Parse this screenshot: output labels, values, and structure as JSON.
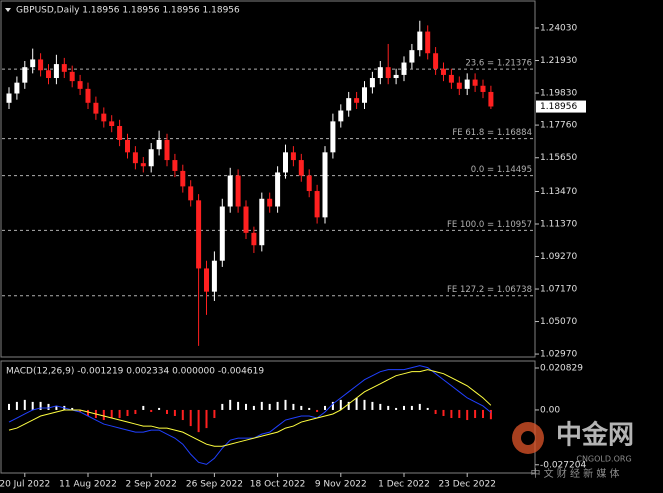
{
  "chart_data": [
    {
      "type": "candlestick",
      "title": "GBPUSD,Daily  1.18956 1.18956 1.18956 1.18956",
      "up_color": "#ffffff",
      "down_color": "#ff2020",
      "categories": [
        null,
        null,
        "20 Jul 2022",
        null,
        null,
        null,
        null,
        null,
        null,
        null,
        "11 Aug 2022",
        null,
        null,
        null,
        null,
        null,
        null,
        null,
        "2 Sep 2022",
        null,
        null,
        null,
        null,
        null,
        null,
        null,
        "26 Sep 2022",
        null,
        null,
        null,
        null,
        null,
        null,
        null,
        "18 Oct 2022",
        null,
        null,
        null,
        null,
        null,
        null,
        null,
        "9 Nov 2022",
        null,
        null,
        null,
        null,
        null,
        null,
        null,
        "1 Dec 2022",
        null,
        null,
        null,
        null,
        null,
        null,
        null,
        "23 Dec 2022",
        null,
        null,
        null
      ],
      "ohlc": [
        [
          1.192,
          1.202,
          1.188,
          1.198
        ],
        [
          1.198,
          1.209,
          1.194,
          1.205
        ],
        [
          1.205,
          1.219,
          1.201,
          1.215
        ],
        [
          1.215,
          1.227,
          1.211,
          1.22
        ],
        [
          1.22,
          1.224,
          1.209,
          1.213
        ],
        [
          1.213,
          1.217,
          1.204,
          1.208
        ],
        [
          1.208,
          1.223,
          1.204,
          1.217
        ],
        [
          1.217,
          1.221,
          1.208,
          1.212
        ],
        [
          1.212,
          1.216,
          1.202,
          1.206
        ],
        [
          1.206,
          1.21,
          1.197,
          1.201
        ],
        [
          1.201,
          1.205,
          1.188,
          1.192
        ],
        [
          1.192,
          1.196,
          1.181,
          1.185
        ],
        [
          1.185,
          1.189,
          1.176,
          1.18
        ],
        [
          1.18,
          1.184,
          1.173,
          1.177
        ],
        [
          1.177,
          1.181,
          1.164,
          1.168
        ],
        [
          1.168,
          1.172,
          1.156,
          1.16
        ],
        [
          1.16,
          1.164,
          1.149,
          1.153
        ],
        [
          1.153,
          1.157,
          1.147,
          1.151
        ],
        [
          1.151,
          1.166,
          1.147,
          1.162
        ],
        [
          1.162,
          1.174,
          1.158,
          1.168
        ],
        [
          1.168,
          1.172,
          1.151,
          1.155
        ],
        [
          1.155,
          1.159,
          1.144,
          1.148
        ],
        [
          1.148,
          1.152,
          1.134,
          1.138
        ],
        [
          1.138,
          1.142,
          1.125,
          1.129
        ],
        [
          1.129,
          1.133,
          1.035,
          1.085
        ],
        [
          1.085,
          1.09,
          1.055,
          1.07
        ],
        [
          1.07,
          1.096,
          1.064,
          1.09
        ],
        [
          1.09,
          1.13,
          1.086,
          1.125
        ],
        [
          1.125,
          1.15,
          1.121,
          1.145
        ],
        [
          1.145,
          1.149,
          1.121,
          1.125
        ],
        [
          1.125,
          1.129,
          1.104,
          1.108
        ],
        [
          1.108,
          1.112,
          1.095,
          1.1
        ],
        [
          1.1,
          1.134,
          1.096,
          1.13
        ],
        [
          1.13,
          1.134,
          1.121,
          1.125
        ],
        [
          1.125,
          1.151,
          1.121,
          1.147
        ],
        [
          1.147,
          1.165,
          1.143,
          1.16
        ],
        [
          1.16,
          1.164,
          1.151,
          1.155
        ],
        [
          1.155,
          1.159,
          1.141,
          1.145
        ],
        [
          1.145,
          1.149,
          1.131,
          1.135
        ],
        [
          1.135,
          1.139,
          1.114,
          1.118
        ],
        [
          1.118,
          1.164,
          1.114,
          1.16
        ],
        [
          1.16,
          1.185,
          1.156,
          1.18
        ],
        [
          1.18,
          1.191,
          1.176,
          1.187
        ],
        [
          1.187,
          1.199,
          1.183,
          1.195
        ],
        [
          1.195,
          1.199,
          1.188,
          1.192
        ],
        [
          1.192,
          1.206,
          1.188,
          1.202
        ],
        [
          1.202,
          1.212,
          1.198,
          1.208
        ],
        [
          1.208,
          1.219,
          1.204,
          1.215
        ],
        [
          1.215,
          1.23,
          1.204,
          1.208
        ],
        [
          1.208,
          1.214,
          1.204,
          1.21
        ],
        [
          1.21,
          1.222,
          1.206,
          1.218
        ],
        [
          1.218,
          1.23,
          1.214,
          1.226
        ],
        [
          1.226,
          1.245,
          1.222,
          1.238
        ],
        [
          1.238,
          1.242,
          1.22,
          1.224
        ],
        [
          1.224,
          1.228,
          1.21,
          1.214
        ],
        [
          1.214,
          1.218,
          1.206,
          1.21
        ],
        [
          1.21,
          1.214,
          1.201,
          1.205
        ],
        [
          1.205,
          1.209,
          1.197,
          1.201
        ],
        [
          1.201,
          1.211,
          1.197,
          1.207
        ],
        [
          1.207,
          1.211,
          1.199,
          1.203
        ],
        [
          1.203,
          1.207,
          1.195,
          1.199
        ],
        [
          1.199,
          1.203,
          1.188,
          1.1896
        ]
      ],
      "ylim": [
        1.0278,
        1.2571
      ],
      "yticks": [
        {
          "value": 1.2403,
          "label": "1.24030"
        },
        {
          "value": 1.2193,
          "label": "1.21930"
        },
        {
          "value": 1.1983,
          "label": "1.19830"
        },
        {
          "value": 1.1776,
          "label": "1.17760"
        },
        {
          "value": 1.1565,
          "label": "1.15650"
        },
        {
          "value": 1.1347,
          "label": "1.13470"
        },
        {
          "value": 1.1137,
          "label": "1.11370"
        },
        {
          "value": 1.0927,
          "label": "1.09270"
        },
        {
          "value": 1.0717,
          "label": "1.07170"
        },
        {
          "value": 1.0507,
          "label": "1.05070"
        },
        {
          "value": 1.0297,
          "label": "1.02970"
        }
      ],
      "last_price": 1.18956,
      "levels": [
        {
          "label": "23.6 = 1.21376",
          "value": 1.21376
        },
        {
          "label": "FE 61.8 = 1.16884",
          "value": 1.16884
        },
        {
          "label": "0.0 = 1.14495",
          "value": 1.14495
        },
        {
          "label": "FE 100.0 = 1.10957",
          "value": 1.10957
        },
        {
          "label": "FE 127.2 = 1.06738",
          "value": 1.06738
        }
      ]
    },
    {
      "type": "macd",
      "title": "MACD(12,26,9) -0.001219 0.002334 0.000000 -0.004619",
      "ylim": [
        -0.0298,
        0.0238
      ],
      "yticks": [
        0.020829,
        {
          "value": 0,
          "label": "0.00"
        },
        -0.027204
      ],
      "series": [
        {
          "name": "histogram",
          "color": "#ffffff",
          "neg_color": "#ff2020",
          "values": [
            0.003,
            0.004,
            0.005,
            0.004,
            0.004,
            0.003,
            0.002,
            0.002,
            0.001,
            -0.001,
            -0.003,
            -0.004,
            -0.005,
            -0.004,
            -0.004,
            -0.003,
            -0.002,
            0.002,
            -0.001,
            0.001,
            -0.002,
            -0.003,
            -0.005,
            -0.008,
            -0.011,
            -0.009,
            -0.004,
            0.003,
            0.005,
            0.004,
            0.003,
            0.002,
            0.004,
            0.003,
            0.004,
            0.005,
            0.003,
            0.002,
            0.001,
            -0.001,
            0.002,
            0.004,
            0.005,
            0.004,
            0.006,
            0.005,
            0.004,
            0.003,
            0.002,
            0.001,
            0.002,
            0.002,
            0.003,
            0.001,
            -0.002,
            -0.003,
            -0.004,
            -0.004,
            -0.005,
            -0.004,
            -0.004,
            -0.0046
          ]
        },
        {
          "name": "macd",
          "color": "#2040ff",
          "values": [
            -0.006,
            -0.004,
            -0.002,
            0,
            0.001,
            0.001,
            0.002,
            0.001,
            0,
            -0.001,
            -0.003,
            -0.005,
            -0.007,
            -0.008,
            -0.009,
            -0.01,
            -0.011,
            -0.011,
            -0.01,
            -0.01,
            -0.012,
            -0.014,
            -0.017,
            -0.022,
            -0.026,
            -0.027,
            -0.024,
            -0.019,
            -0.015,
            -0.014,
            -0.014,
            -0.014,
            -0.012,
            -0.011,
            -0.008,
            -0.005,
            -0.004,
            -0.003,
            -0.003,
            -0.004,
            -0.001,
            0.003,
            0.006,
            0.009,
            0.012,
            0.015,
            0.017,
            0.019,
            0.02,
            0.02,
            0.02,
            0.021,
            0.022,
            0.021,
            0.018,
            0.015,
            0.012,
            0.009,
            0.006,
            0.004,
            0.002,
            -0.0012
          ]
        },
        {
          "name": "signal",
          "color": "#ffff40",
          "values": [
            -0.01,
            -0.009,
            -0.007,
            -0.005,
            -0.003,
            -0.002,
            -0.001,
            0,
            0,
            0,
            -0.001,
            -0.002,
            -0.003,
            -0.004,
            -0.005,
            -0.006,
            -0.007,
            -0.008,
            -0.008,
            -0.009,
            -0.009,
            -0.01,
            -0.011,
            -0.013,
            -0.015,
            -0.017,
            -0.018,
            -0.018,
            -0.017,
            -0.016,
            -0.015,
            -0.014,
            -0.013,
            -0.012,
            -0.011,
            -0.009,
            -0.008,
            -0.006,
            -0.005,
            -0.004,
            -0.003,
            -0.002,
            0,
            0.003,
            0.006,
            0.009,
            0.011,
            0.013,
            0.015,
            0.017,
            0.018,
            0.019,
            0.019,
            0.02,
            0.019,
            0.018,
            0.016,
            0.014,
            0.012,
            0.009,
            0.006,
            0.0023
          ]
        }
      ]
    }
  ],
  "watermark": {
    "brand": "中金网",
    "site": "CNGOLD.ORG",
    "slogan": "中 文 财 经 新 媒 体"
  }
}
